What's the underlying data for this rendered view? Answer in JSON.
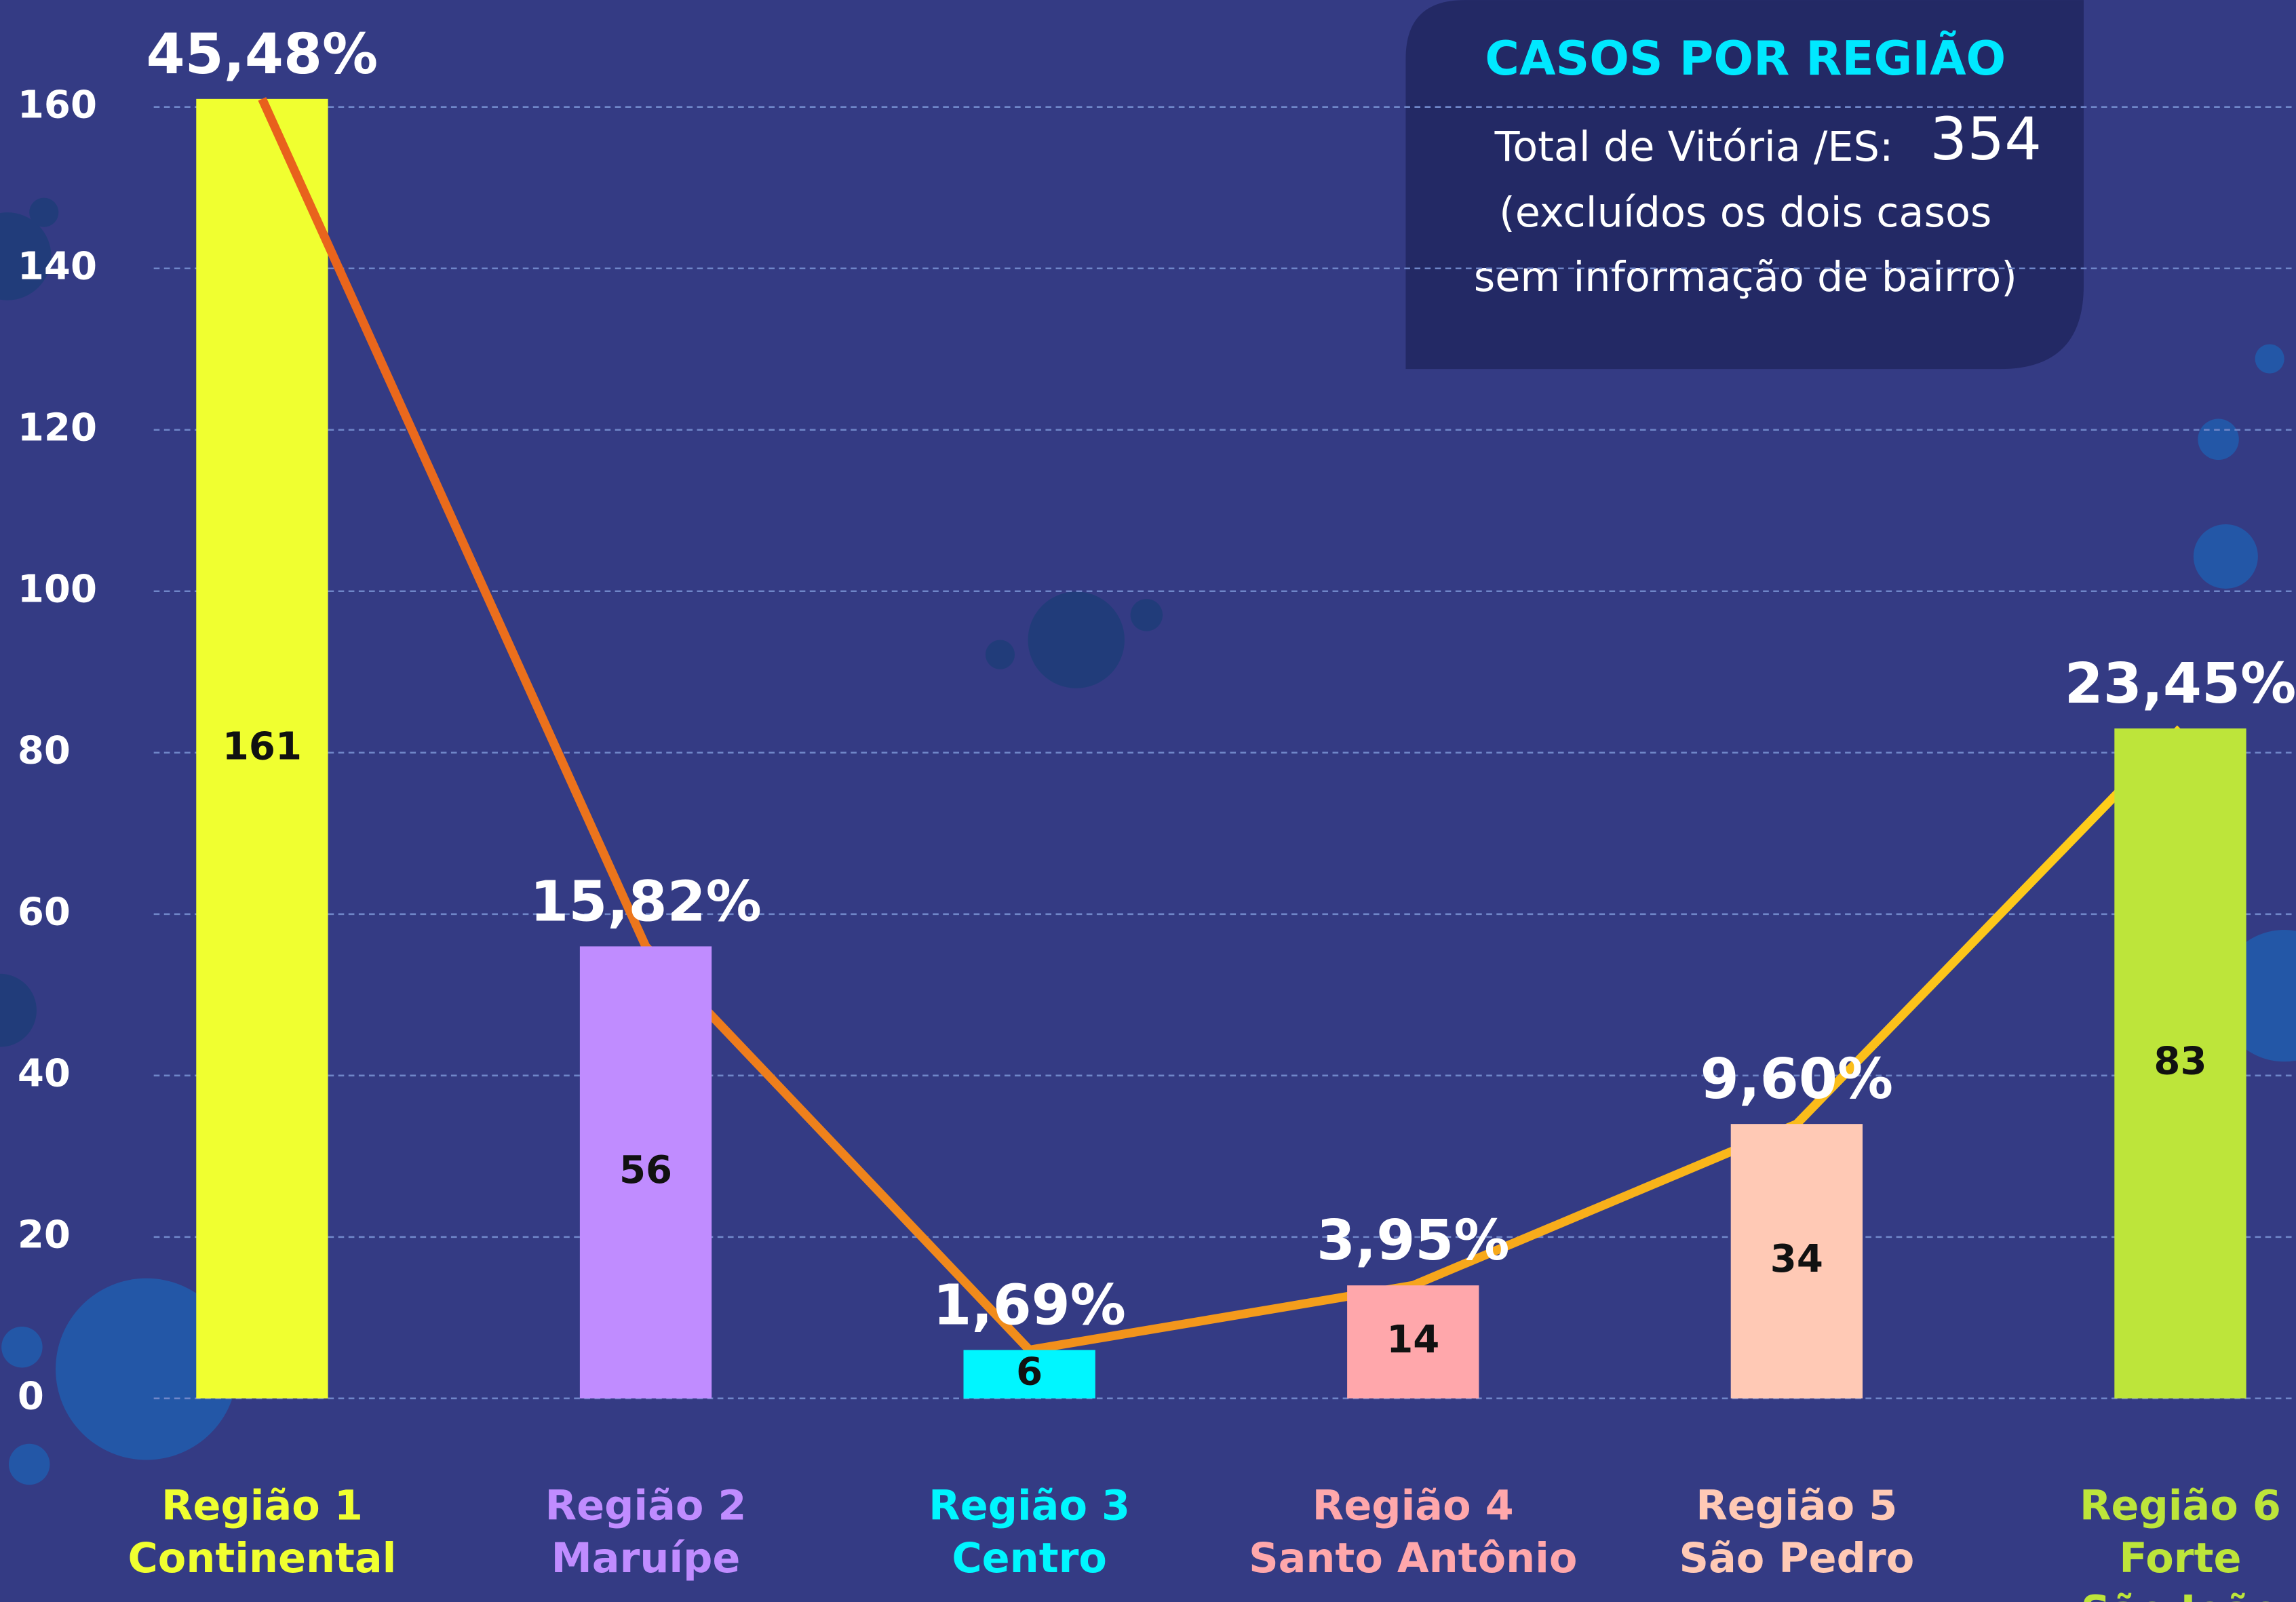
{
  "chart_data": {
    "type": "bar",
    "categories": [
      [
        "Região 1",
        "Continental"
      ],
      [
        "Região 2",
        "Maruípe"
      ],
      [
        "Região 3",
        "Centro"
      ],
      [
        "Região 4",
        "Santo Antônio"
      ],
      [
        "Região 5",
        "São Pedro"
      ],
      [
        "Região 6",
        "Forte",
        "São João"
      ]
    ],
    "values": [
      161,
      56,
      6,
      14,
      34,
      83
    ],
    "colors": [
      "#f0ff30",
      "#c08cff",
      "#00f6ff",
      "#ffa7ab",
      "#ffc9b5",
      "#bde53a"
    ],
    "shares": [
      45.48,
      15.82,
      1.69,
      3.95,
      9.6,
      23.45
    ],
    "share_labels": [
      "45,48%",
      "15,82%",
      "1,69%",
      "3,95%",
      "9,60%",
      "23,45%"
    ],
    "line_colors": [
      "#e8601c",
      "#ffd21a"
    ],
    "ylim": [
      0,
      160
    ],
    "yticks": [
      0,
      20,
      40,
      60,
      80,
      100,
      120,
      140,
      160
    ],
    "grid": true,
    "info_box": {
      "title": "CASOS POR REGIÃO",
      "total_label": "Total de Vitória /ES:",
      "total": 354,
      "note": [
        "(excluídos os dois casos",
        "sem informação de bairro)"
      ]
    }
  }
}
